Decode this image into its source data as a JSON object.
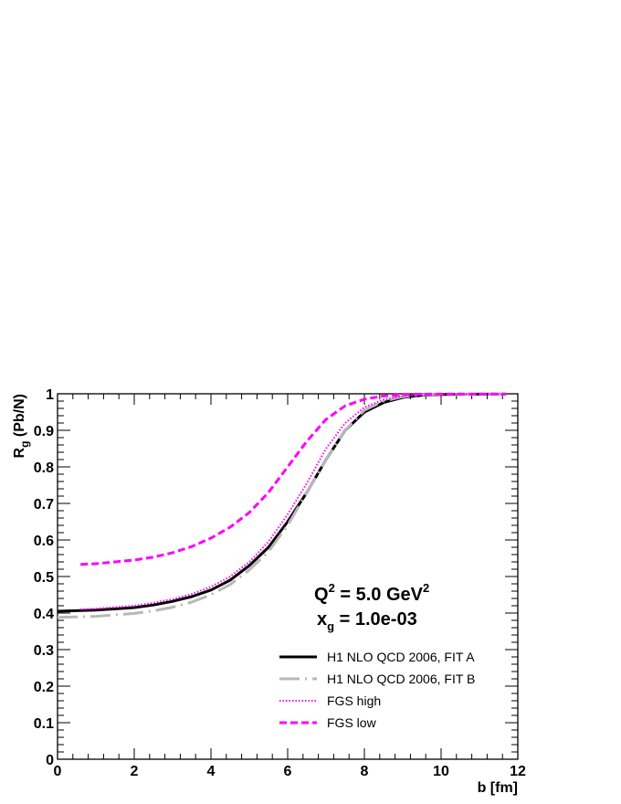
{
  "chart_data": {
    "type": "line",
    "xlabel": "b [fm]",
    "ylabel": {
      "base": "R",
      "sub": "g",
      "rest": " (Pb/N)"
    },
    "xlim": [
      0,
      12
    ],
    "ylim": [
      0,
      1
    ],
    "xticks": [
      0,
      2,
      4,
      6,
      8,
      10,
      12
    ],
    "yticks": [
      0,
      0.1,
      0.2,
      0.3,
      0.4,
      0.5,
      0.6,
      0.7,
      0.8,
      0.9,
      1
    ],
    "ytick_labels": [
      "0",
      "0.1",
      "0.2",
      "0.3",
      "0.4",
      "0.5",
      "0.6",
      "0.7",
      "0.8",
      "0.9",
      "1"
    ],
    "grid": false,
    "legend_position": "bottom-right",
    "annotation_q2": {
      "base": "Q",
      "sup1": "2",
      "mid": " = 5.0 GeV",
      "sup2": "2"
    },
    "annotation_xg": {
      "base": "x",
      "sub": "g",
      "rest": " = 1.0e-03"
    },
    "series": [
      {
        "name": "H1 NLO QCD 2006, FIT A",
        "color": "#000000",
        "style": "solid",
        "x": [
          0,
          1,
          2,
          2.5,
          3,
          3.5,
          4,
          4.5,
          5,
          5.5,
          6,
          6.5,
          7,
          7.5,
          8,
          8.5,
          9,
          9.5,
          10,
          11,
          11.7
        ],
        "y": [
          0.405,
          0.408,
          0.415,
          0.422,
          0.432,
          0.445,
          0.463,
          0.49,
          0.53,
          0.58,
          0.65,
          0.73,
          0.82,
          0.9,
          0.95,
          0.976,
          0.99,
          0.996,
          0.998,
          0.999,
          0.999
        ]
      },
      {
        "name": "H1 NLO QCD 2006, FIT B",
        "color": "#b8b8b8",
        "style": "longdash",
        "x": [
          0,
          1,
          2,
          2.5,
          3,
          3.5,
          4,
          4.5,
          5,
          5.5,
          6,
          6.5,
          7,
          7.5,
          8,
          8.5,
          9,
          9.5,
          10,
          11,
          11.7
        ],
        "y": [
          0.388,
          0.391,
          0.399,
          0.406,
          0.416,
          0.43,
          0.45,
          0.478,
          0.518,
          0.568,
          0.64,
          0.73,
          0.82,
          0.9,
          0.955,
          0.98,
          0.992,
          0.997,
          0.999,
          0.999,
          0.999
        ]
      },
      {
        "name": "FGS high",
        "color": "#ff00ff",
        "style": "dotted",
        "x": [
          0.6,
          1,
          2,
          2.5,
          3,
          3.5,
          4,
          4.5,
          5,
          5.5,
          6,
          6.5,
          7,
          7.5,
          8,
          8.5,
          9,
          9.5,
          10,
          11,
          11.7
        ],
        "y": [
          0.41,
          0.412,
          0.42,
          0.428,
          0.438,
          0.452,
          0.472,
          0.5,
          0.54,
          0.595,
          0.67,
          0.755,
          0.85,
          0.92,
          0.963,
          0.984,
          0.994,
          0.998,
          0.999,
          0.999,
          0.999
        ]
      },
      {
        "name": "FGS low",
        "color": "#ff00ff",
        "style": "dashed",
        "x": [
          0.6,
          1,
          2,
          2.5,
          3,
          3.5,
          4,
          4.5,
          5,
          5.5,
          6,
          6.5,
          7,
          7.5,
          8,
          8.5,
          9,
          9.5,
          10,
          11,
          11.7
        ],
        "y": [
          0.533,
          0.535,
          0.545,
          0.553,
          0.565,
          0.582,
          0.605,
          0.635,
          0.675,
          0.73,
          0.8,
          0.87,
          0.93,
          0.967,
          0.985,
          0.994,
          0.998,
          0.999,
          0.999,
          0.999,
          0.999
        ]
      }
    ]
  }
}
